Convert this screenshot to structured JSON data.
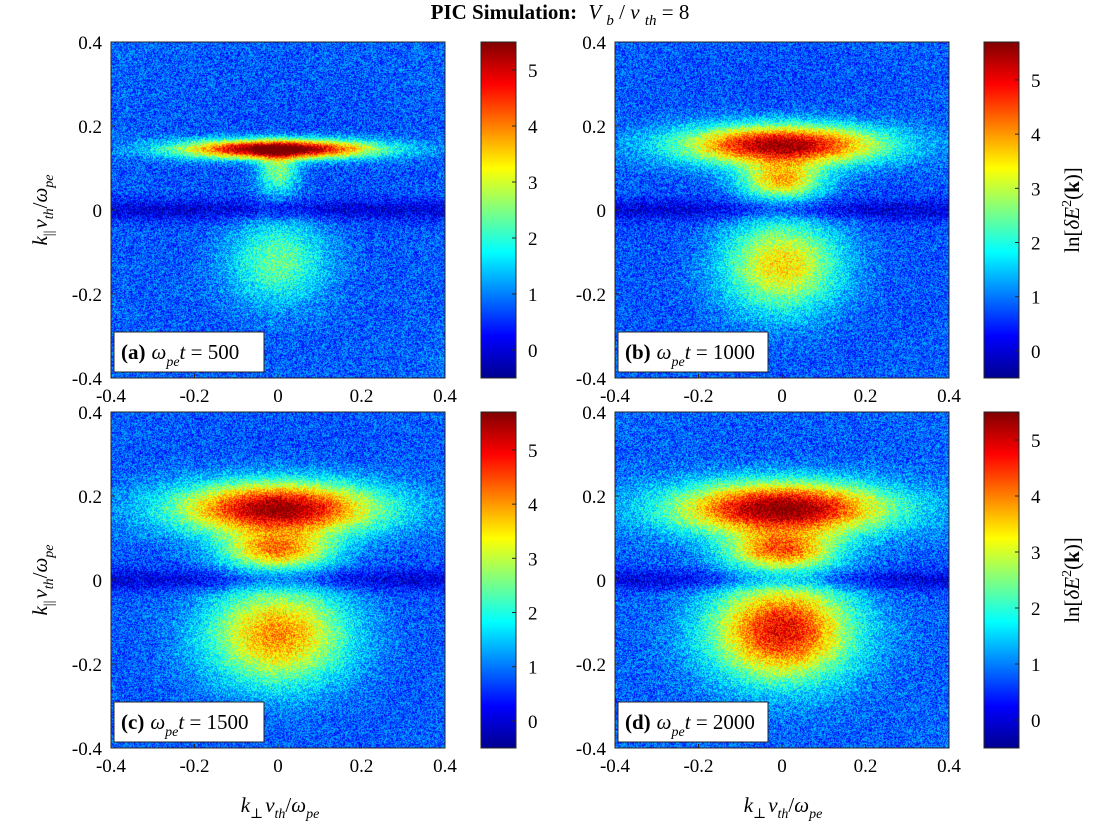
{
  "figure": {
    "title": {
      "prefix": "PIC Simulation:",
      "v": "V",
      "b": "b",
      "slash": "/",
      "v2": "v",
      "th": "th",
      "eq": " = 8"
    }
  },
  "axes_text": {
    "k": "k",
    "par": "||",
    "perp": "⊥",
    "v": "v",
    "th": "th",
    "slash": "/",
    "omega": "ω",
    "pe": "pe"
  },
  "colorbar_label": {
    "ln": "ln[",
    "delta": "δ",
    "E": "E",
    "two": "2",
    "paren_open": "(",
    "k_bold": "k",
    "paren_close": ")]"
  },
  "colors": {
    "jet": [
      "#00008f",
      "#0000ff",
      "#00ffff",
      "#ffff00",
      "#ff0000",
      "#800000"
    ]
  },
  "chart_data": [
    {
      "type": "heatmap",
      "panel_label": "(a)",
      "time_label": {
        "omega": "ω",
        "pe": "pe",
        "t": "t",
        "value": " = 500"
      },
      "xlim": [
        -0.4,
        0.4
      ],
      "ylim": [
        -0.4,
        0.4
      ],
      "xticks": [
        "-0.4",
        "-0.2",
        "0",
        "0.2",
        "0.4"
      ],
      "yticks": [
        "0.4",
        "0.2",
        "0",
        "-0.2",
        "-0.4"
      ],
      "colorbar_range": [
        -0.5,
        5.5
      ],
      "colorbar_ticks": [
        "0",
        "1",
        "2",
        "3",
        "4",
        "5"
      ],
      "show_colorbar_label": false,
      "features": [
        {
          "kx": 0.0,
          "ky": 0.145,
          "sx": 0.16,
          "sy": 0.016,
          "amp": 5.4
        },
        {
          "kx": 0.0,
          "ky": 0.09,
          "sx": 0.035,
          "sy": 0.035,
          "amp": 1.8
        },
        {
          "kx": 0.0,
          "ky": -0.12,
          "sx": 0.085,
          "sy": 0.075,
          "amp": 1.7
        }
      ]
    },
    {
      "type": "heatmap",
      "panel_label": "(b)",
      "time_label": {
        "omega": "ω",
        "pe": "pe",
        "t": "t",
        "value": " = 1000"
      },
      "xlim": [
        -0.4,
        0.4
      ],
      "ylim": [
        -0.4,
        0.4
      ],
      "xticks": [
        "-0.4",
        "-0.2",
        "0",
        "0.2",
        "0.4"
      ],
      "yticks": [
        "0.4",
        "0.2",
        "0",
        "-0.2",
        "-0.4"
      ],
      "colorbar_range": [
        -0.5,
        5.7
      ],
      "colorbar_ticks": [
        "0",
        "1",
        "2",
        "3",
        "4",
        "5"
      ],
      "show_colorbar_label": true,
      "features": [
        {
          "kx": 0.0,
          "ky": 0.155,
          "sx": 0.17,
          "sy": 0.034,
          "amp": 4.9
        },
        {
          "kx": 0.0,
          "ky": 0.07,
          "sx": 0.07,
          "sy": 0.03,
          "amp": 2.9
        },
        {
          "kx": 0.0,
          "ky": -0.13,
          "sx": 0.1,
          "sy": 0.08,
          "amp": 2.9
        }
      ]
    },
    {
      "type": "heatmap",
      "panel_label": "(c)",
      "time_label": {
        "omega": "ω",
        "pe": "pe",
        "t": "t",
        "value": " = 1500"
      },
      "xlim": [
        -0.4,
        0.4
      ],
      "ylim": [
        -0.4,
        0.4
      ],
      "xticks": [
        "-0.4",
        "-0.2",
        "0",
        "0.2",
        "0.4"
      ],
      "yticks": [
        "0.4",
        "0.2",
        "0",
        "-0.2",
        "-0.4"
      ],
      "colorbar_range": [
        -0.5,
        5.7
      ],
      "colorbar_ticks": [
        "0",
        "1",
        "2",
        "3",
        "4",
        "5"
      ],
      "show_colorbar_label": false,
      "features": [
        {
          "kx": 0.0,
          "ky": 0.17,
          "sx": 0.17,
          "sy": 0.045,
          "amp": 5.0
        },
        {
          "kx": 0.0,
          "ky": 0.07,
          "sx": 0.09,
          "sy": 0.03,
          "amp": 3.0
        },
        {
          "kx": 0.0,
          "ky": -0.13,
          "sx": 0.12,
          "sy": 0.085,
          "amp": 3.4
        }
      ]
    },
    {
      "type": "heatmap",
      "panel_label": "(d)",
      "time_label": {
        "omega": "ω",
        "pe": "pe",
        "t": "t",
        "value": " = 2000"
      },
      "xlim": [
        -0.4,
        0.4
      ],
      "ylim": [
        -0.4,
        0.4
      ],
      "xticks": [
        "-0.4",
        "-0.2",
        "0",
        "0.2",
        "0.4"
      ],
      "yticks": [
        "0.4",
        "0.2",
        "0",
        "-0.2",
        "-0.4"
      ],
      "colorbar_range": [
        -0.5,
        5.5
      ],
      "colorbar_ticks": [
        "0",
        "1",
        "2",
        "3",
        "4",
        "5"
      ],
      "show_colorbar_label": true,
      "features": [
        {
          "kx": 0.0,
          "ky": 0.17,
          "sx": 0.18,
          "sy": 0.045,
          "amp": 4.9
        },
        {
          "kx": 0.0,
          "ky": 0.07,
          "sx": 0.09,
          "sy": 0.03,
          "amp": 3.0
        },
        {
          "kx": 0.0,
          "ky": -0.12,
          "sx": 0.12,
          "sy": 0.085,
          "amp": 4.2
        }
      ]
    }
  ]
}
